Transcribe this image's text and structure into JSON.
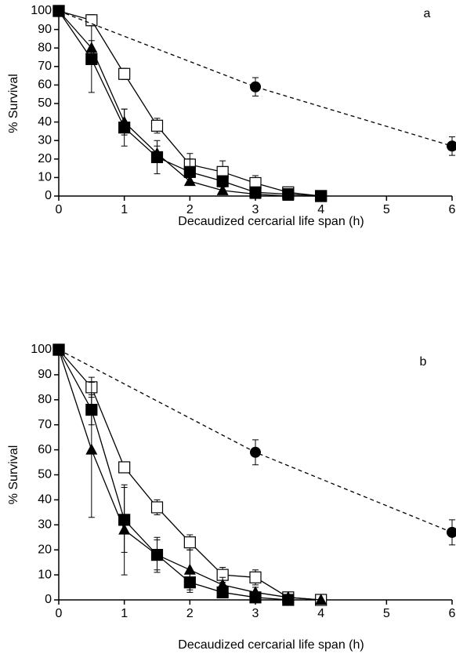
{
  "chart_data": [
    {
      "type": "line",
      "panel_label": "a",
      "xlabel": "Decaudized cercarial life span (h)",
      "ylabel": "% Survival",
      "xlim": [
        0,
        6
      ],
      "xticks": [
        0,
        1,
        2,
        3,
        4,
        5,
        6
      ],
      "ylim": [
        0,
        100
      ],
      "yticks": [
        0,
        10,
        20,
        30,
        40,
        50,
        60,
        70,
        80,
        90,
        100
      ],
      "series": [
        {
          "color": "#000000",
          "marker": "square-open",
          "dashed": false,
          "x": [
            0,
            0.5,
            1,
            1.5,
            2,
            2.5,
            3,
            3.5,
            4
          ],
          "values": [
            100,
            95,
            66,
            38,
            17,
            13,
            7,
            2,
            0
          ],
          "errors": [
            0,
            3,
            3,
            4,
            6,
            6,
            4,
            2,
            0
          ]
        },
        {
          "color": "#000000",
          "marker": "square",
          "dashed": false,
          "x": [
            0,
            0.5,
            1,
            1.5,
            2,
            2.5,
            3,
            3.5,
            4
          ],
          "values": [
            100,
            74,
            37,
            21,
            13,
            8,
            2,
            1,
            0
          ],
          "errors": [
            0,
            18,
            10,
            9,
            7,
            3,
            2,
            1,
            0
          ]
        },
        {
          "color": "#000000",
          "marker": "triangle",
          "dashed": false,
          "x": [
            0,
            0.5,
            1,
            1.5,
            2,
            2.5,
            3,
            3.5
          ],
          "values": [
            100,
            80,
            40,
            23,
            8,
            3,
            1,
            0
          ],
          "errors": [
            0,
            4,
            7,
            4,
            2,
            2,
            1,
            0
          ]
        },
        {
          "color": "#000000",
          "marker": "circle",
          "dashed": true,
          "x": [
            0,
            3,
            6
          ],
          "values": [
            100,
            59,
            27
          ],
          "errors": [
            0,
            5,
            5
          ]
        }
      ]
    },
    {
      "type": "line",
      "panel_label": "b",
      "xlabel": "Decaudized cercarial life span (h)",
      "ylabel": "% Survival",
      "xlim": [
        0,
        6
      ],
      "xticks": [
        0,
        1,
        2,
        3,
        4,
        5,
        6
      ],
      "ylim": [
        0,
        100
      ],
      "yticks": [
        0,
        10,
        20,
        30,
        40,
        50,
        60,
        70,
        80,
        90,
        100
      ],
      "series": [
        {
          "color": "#000000",
          "marker": "square-open",
          "dashed": false,
          "x": [
            0,
            0.5,
            1,
            1.5,
            2,
            2.5,
            3,
            3.5,
            4
          ],
          "values": [
            100,
            85,
            53,
            37,
            23,
            10,
            9,
            1,
            0
          ],
          "errors": [
            0,
            4,
            2,
            3,
            3,
            3,
            3,
            1,
            0
          ]
        },
        {
          "color": "#000000",
          "marker": "square",
          "dashed": false,
          "x": [
            0,
            0.5,
            1,
            1.5,
            2,
            2.5,
            3,
            3.5
          ],
          "values": [
            100,
            76,
            32,
            18,
            7,
            3,
            1,
            0
          ],
          "errors": [
            0,
            6,
            13,
            7,
            4,
            2,
            1,
            0
          ]
        },
        {
          "color": "#000000",
          "marker": "triangle",
          "dashed": false,
          "x": [
            0,
            0.5,
            1,
            1.5,
            2,
            2.5,
            3,
            3.5,
            4
          ],
          "values": [
            100,
            60,
            28,
            18,
            12,
            6,
            3,
            1,
            0
          ],
          "errors": [
            0,
            27,
            18,
            6,
            8,
            3,
            2,
            1,
            0
          ]
        },
        {
          "color": "#000000",
          "marker": "circle",
          "dashed": true,
          "x": [
            0,
            3,
            6
          ],
          "values": [
            100,
            59,
            27
          ],
          "errors": [
            0,
            5,
            5
          ]
        }
      ]
    }
  ]
}
